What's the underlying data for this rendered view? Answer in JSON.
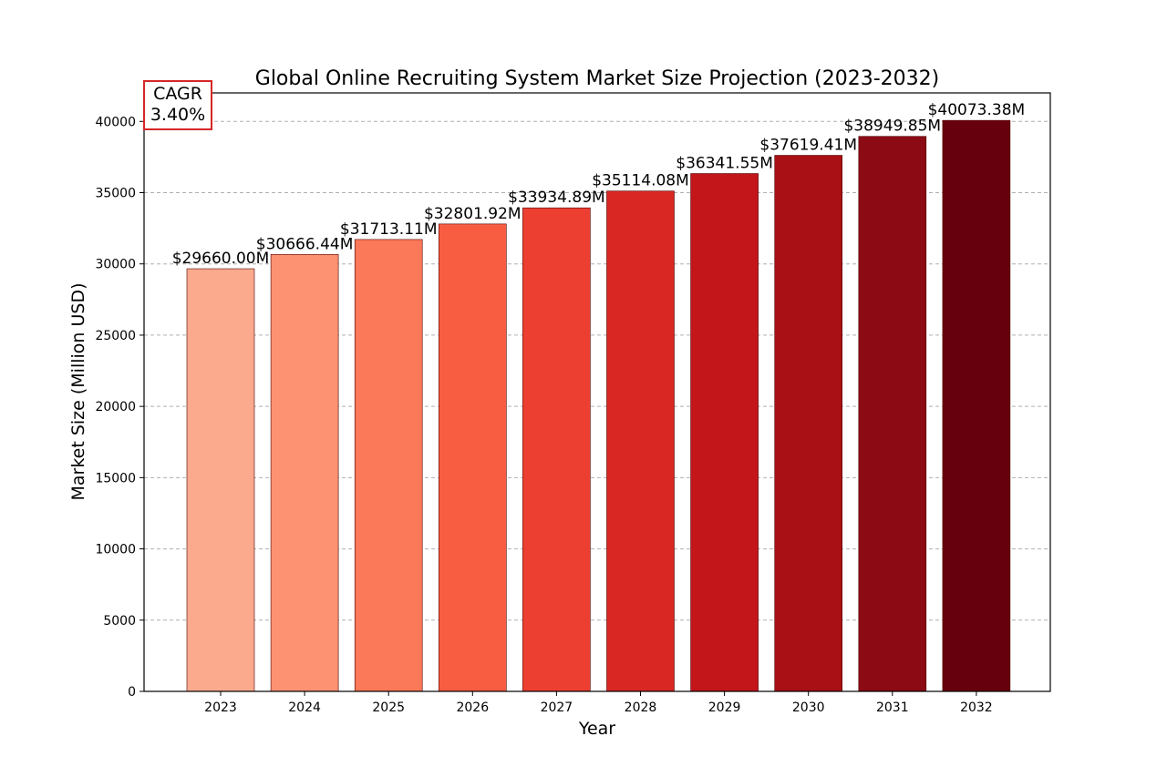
{
  "chart_data": {
    "type": "bar",
    "title": "Global Online Recruiting System Market Size Projection (2023-2032)",
    "xlabel": "Year",
    "ylabel": "Market Size (Million USD)",
    "categories": [
      "2023",
      "2024",
      "2025",
      "2026",
      "2027",
      "2028",
      "2029",
      "2030",
      "2031",
      "2032"
    ],
    "values": [
      29660.0,
      30666.44,
      31713.11,
      32801.92,
      33934.89,
      35114.08,
      36341.55,
      37619.41,
      38949.85,
      40073.38
    ],
    "value_labels": [
      "$29660.00M",
      "$30666.44M",
      "$31713.11M",
      "$32801.92M",
      "$33934.89M",
      "$35114.08M",
      "$36341.55M",
      "$37619.41M",
      "$38949.85M",
      "$40073.38M"
    ],
    "bar_colors": [
      "#fcaa8d",
      "#fc9272",
      "#fb7858",
      "#f85d42",
      "#ed3f31",
      "#d92723",
      "#c3161b",
      "#a91016",
      "#8b0a14",
      "#67000d"
    ],
    "ylim": [
      0,
      42000
    ],
    "yticks": [
      0,
      5000,
      10000,
      15000,
      20000,
      25000,
      30000,
      35000,
      40000
    ],
    "grid": "horizontal dashed",
    "legend": "none"
  },
  "annotation": {
    "cagr_label": "CAGR",
    "cagr_value": "3.40%",
    "border_color": "#d62728"
  }
}
